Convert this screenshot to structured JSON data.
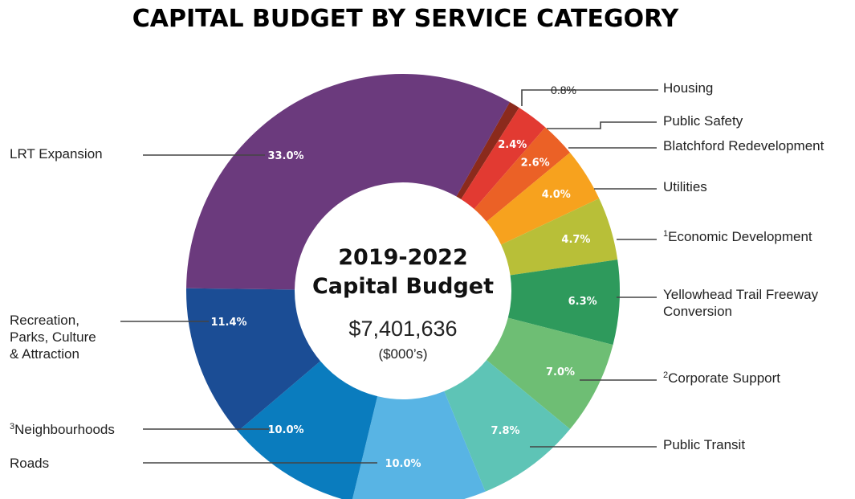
{
  "chart_data": {
    "type": "pie",
    "title": "CAPITAL BUDGET BY SERVICE CATEGORY",
    "center": {
      "line1": "2019-2022",
      "line2": "Capital Budget",
      "value": "$7,401,636",
      "unit": "($000’s)"
    },
    "slices": [
      {
        "key": "housing",
        "name": "Housing",
        "sup": "",
        "value": 0.8,
        "label": "0.8%",
        "color": "#8B2A1C"
      },
      {
        "key": "public-safety",
        "name": "Public Safety",
        "sup": "",
        "value": 2.4,
        "label": "2.4%",
        "color": "#E23A32"
      },
      {
        "key": "blatchford",
        "name": "Blatchford Redevelopment",
        "sup": "",
        "value": 2.6,
        "label": "2.6%",
        "color": "#EB6126"
      },
      {
        "key": "utilities",
        "name": "Utilities",
        "sup": "",
        "value": 4.0,
        "label": "4.0%",
        "color": "#F7A21E"
      },
      {
        "key": "economic-development",
        "name": "Economic Development",
        "sup": "1",
        "value": 4.7,
        "label": "4.7%",
        "color": "#B8BF38"
      },
      {
        "key": "yellowhead",
        "name": "Yellowhead Trail Freeway\nConversion",
        "sup": "",
        "value": 6.3,
        "label": "6.3%",
        "color": "#2E9A5C"
      },
      {
        "key": "corporate-support",
        "name": "Corporate Support",
        "sup": "2",
        "value": 7.0,
        "label": "7.0%",
        "color": "#6EBE74"
      },
      {
        "key": "public-transit",
        "name": "Public Transit",
        "sup": "",
        "value": 7.8,
        "label": "7.8%",
        "color": "#5EC4B6"
      },
      {
        "key": "roads",
        "name": "Roads",
        "sup": "",
        "value": 10.0,
        "label": "10.0%",
        "color": "#58B4E4"
      },
      {
        "key": "neighbourhoods",
        "name": "Neighbourhoods",
        "sup": "3",
        "value": 10.0,
        "label": "10.0%",
        "color": "#0A7CBE"
      },
      {
        "key": "recreation",
        "name": "Recreation,\nParks, Culture\n& Attraction",
        "sup": "",
        "value": 11.4,
        "label": "11.4%",
        "color": "#1B4D95"
      },
      {
        "key": "lrt",
        "name": "LRT Expansion",
        "sup": "",
        "value": 33.0,
        "label": "33.0%",
        "color": "#6B3A7D"
      }
    ]
  }
}
